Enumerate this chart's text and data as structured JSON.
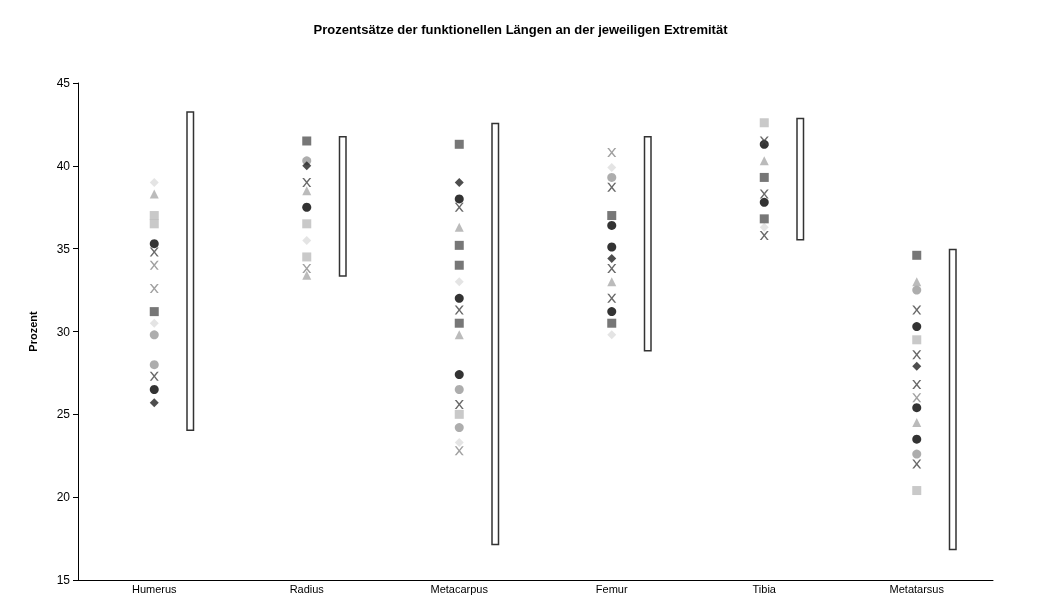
{
  "chart_data": {
    "type": "scatter",
    "title": "Prozentsätze der funktionellen Längen an der jeweiligen Extremität",
    "ylabel": "Prozent",
    "categories": [
      "Humerus",
      "Radius",
      "Metacarpus",
      "Femur",
      "Tibia",
      "Metatarsus"
    ],
    "ylim": [
      15,
      45
    ],
    "yticks": [
      15,
      20,
      25,
      30,
      35,
      40,
      45
    ],
    "grid": false,
    "series": [
      {
        "type": "bar",
        "color": "#333333",
        "base": [
          24,
          33.3,
          17.1,
          28.8,
          35.5,
          16.8
        ],
        "values": [
          19.3,
          8.5,
          25.5,
          13,
          7.4,
          18.2
        ]
      },
      {
        "marker": "circle",
        "color": "#000000",
        "x": [
          "Humerus",
          "Humerus",
          "Radius",
          "Metacarpus",
          "Metacarpus",
          "Metacarpus",
          "Femur",
          "Femur",
          "Femur",
          "Tibia",
          "Tibia",
          "Metatarsus",
          "Metatarsus",
          "Metatarsus"
        ],
        "values": [
          35.3,
          26.5,
          37.5,
          27.4,
          38,
          32,
          35.1,
          36.4,
          31.2,
          41.3,
          37.8,
          30.3,
          23.5,
          25.4
        ]
      },
      {
        "marker": "circle",
        "color": "#999999",
        "x": [
          "Humerus",
          "Humerus",
          "Radius",
          "Metacarpus",
          "Metacarpus",
          "Femur",
          "Metatarsus",
          "Metatarsus"
        ],
        "values": [
          29.8,
          28,
          40.3,
          26.5,
          24.2,
          39.3,
          32.5,
          22.6
        ]
      },
      {
        "marker": "diamond",
        "color": "#222222",
        "x": [
          "Humerus",
          "Radius",
          "Metacarpus",
          "Femur",
          "Metatarsus"
        ],
        "values": [
          25.7,
          40,
          39,
          34.4,
          27.9
        ]
      },
      {
        "marker": "diamond",
        "color": "#dddddd",
        "x": [
          "Humerus",
          "Humerus",
          "Radius",
          "Metacarpus",
          "Metacarpus",
          "Femur",
          "Femur",
          "Tibia"
        ],
        "values": [
          39,
          30.5,
          35.5,
          33,
          23.3,
          39.9,
          29.8,
          36.3
        ]
      },
      {
        "marker": "square",
        "color": "#555555",
        "x": [
          "Humerus",
          "Radius",
          "Metacarpus",
          "Metacarpus",
          "Metacarpus",
          "Metacarpus",
          "Femur",
          "Femur",
          "Tibia",
          "Tibia",
          "Metatarsus"
        ],
        "values": [
          31.2,
          41.5,
          41.3,
          35.2,
          34,
          30.5,
          30.5,
          37,
          39.3,
          36.8,
          34.6
        ]
      },
      {
        "marker": "square",
        "color": "#bbbbbb",
        "x": [
          "Humerus",
          "Humerus",
          "Radius",
          "Radius",
          "Metacarpus",
          "Tibia",
          "Metatarsus",
          "Metatarsus"
        ],
        "values": [
          37,
          36.5,
          36.5,
          34.5,
          25,
          42.6,
          29.5,
          20.4
        ]
      },
      {
        "marker": "triangle",
        "color": "#aaaaaa",
        "x": [
          "Humerus",
          "Radius",
          "Radius",
          "Metacarpus",
          "Metacarpus",
          "Femur",
          "Tibia",
          "Metatarsus",
          "Metatarsus"
        ],
        "values": [
          38.3,
          38.5,
          33.4,
          36.3,
          29.8,
          33,
          40.3,
          33,
          24.5
        ]
      },
      {
        "marker": "cross",
        "color": "#444444",
        "x": [
          "Humerus",
          "Humerus",
          "Radius",
          "Metacarpus",
          "Metacarpus",
          "Metacarpus",
          "Femur",
          "Femur",
          "Femur",
          "Tibia",
          "Tibia",
          "Tibia",
          "Metatarsus",
          "Metatarsus",
          "Metatarsus",
          "Metatarsus"
        ],
        "values": [
          34.8,
          27.3,
          39,
          37.5,
          31.3,
          25.6,
          38.7,
          33.8,
          32,
          41.5,
          38.3,
          35.8,
          31.3,
          28.6,
          26.8,
          22
        ]
      },
      {
        "marker": "cross",
        "color": "#888888",
        "x": [
          "Humerus",
          "Humerus",
          "Radius",
          "Metacarpus",
          "Femur",
          "Metatarsus"
        ],
        "values": [
          34,
          32.6,
          33.8,
          22.8,
          40.8,
          26
        ]
      }
    ]
  }
}
